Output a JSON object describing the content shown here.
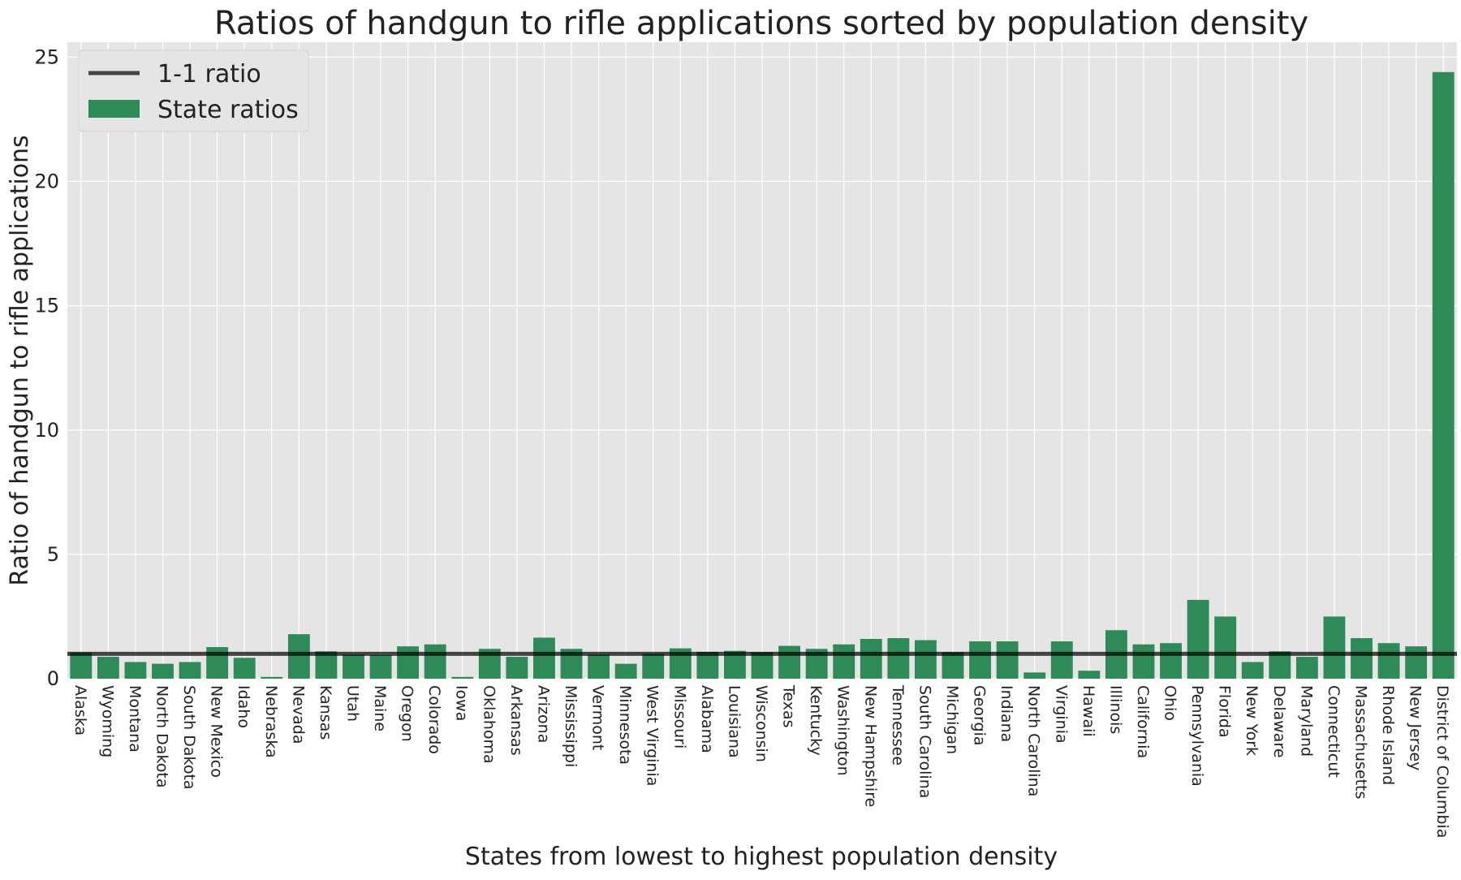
{
  "chart_data": {
    "type": "bar",
    "title": "Ratios of handgun to rifle applications sorted by population density",
    "xlabel": "States from lowest to highest population density",
    "ylabel": "Ratio of handgun to rifle applications",
    "ylim": [
      0,
      25.6
    ],
    "yticks": [
      0,
      5,
      10,
      15,
      20,
      25
    ],
    "grid": true,
    "legend_position": "top-left",
    "reference_line": {
      "name": "1-1 ratio",
      "value": 1,
      "color": "#000000"
    },
    "series": [
      {
        "name": "State ratios",
        "color": "#2e8b57",
        "values": [
          1.05,
          0.88,
          0.67,
          0.6,
          0.67,
          1.27,
          0.84,
          0.07,
          1.79,
          1.1,
          0.97,
          0.95,
          1.3,
          1.38,
          0.07,
          1.2,
          0.88,
          1.65,
          1.2,
          0.97,
          0.6,
          1.0,
          1.22,
          1.08,
          1.12,
          1.07,
          1.32,
          1.2,
          1.38,
          1.6,
          1.63,
          1.55,
          1.07,
          1.5,
          1.5,
          0.25,
          1.5,
          0.32,
          1.95,
          1.38,
          1.43,
          3.17,
          2.5,
          0.67,
          1.1,
          0.88,
          2.5,
          1.63,
          1.43,
          1.3,
          24.4
        ]
      }
    ],
    "categories": [
      "Alaska",
      "Wyoming",
      "Montana",
      "North Dakota",
      "South Dakota",
      "New Mexico",
      "Idaho",
      "Nebraska",
      "Nevada",
      "Kansas",
      "Utah",
      "Maine",
      "Oregon",
      "Colorado",
      "Iowa",
      "Oklahoma",
      "Arkansas",
      "Arizona",
      "Mississippi",
      "Vermont",
      "Minnesota",
      "West Virginia",
      "Missouri",
      "Alabama",
      "Louisiana",
      "Wisconsin",
      "Texas",
      "Kentucky",
      "Washington",
      "New Hampshire",
      "Tennessee",
      "South Carolina",
      "Michigan",
      "Georgia",
      "Indiana",
      "North Carolina",
      "Virginia",
      "Hawaii",
      "Illinois",
      "California",
      "Ohio",
      "Pennsylvania",
      "Florida",
      "New York",
      "Delaware",
      "Maryland",
      "Connecticut",
      "Massachusetts",
      "Rhode Island",
      "New Jersey",
      "District of Columbia"
    ]
  }
}
